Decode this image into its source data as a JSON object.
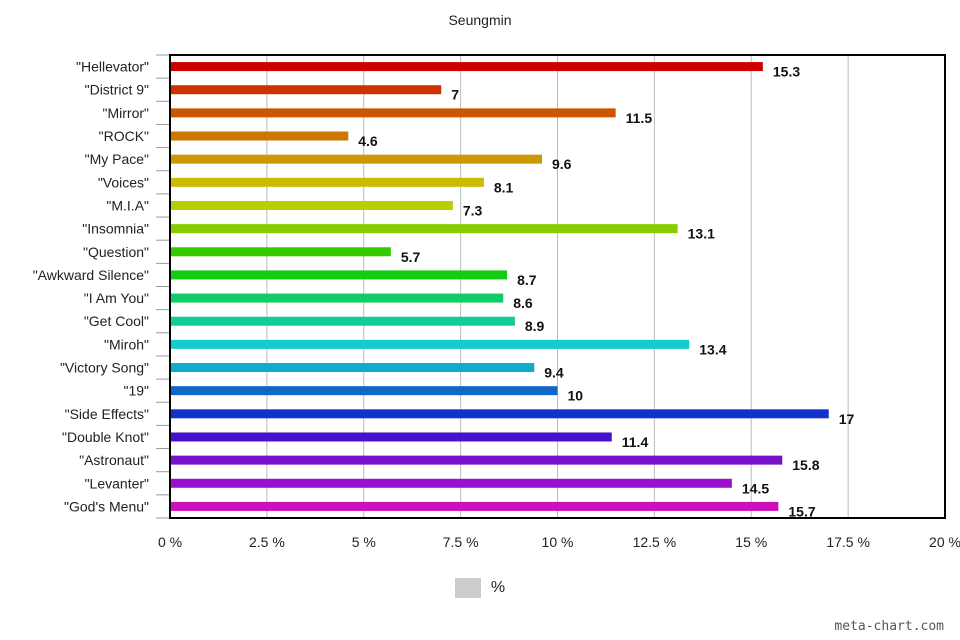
{
  "chart_data": {
    "type": "bar",
    "orientation": "horizontal",
    "title": "Seungmin",
    "categories": [
      "\"Hellevator\"",
      "\"District 9\"",
      "\"Mirror\"",
      "\"ROCK\"",
      "\"My Pace\"",
      "\"Voices\"",
      "\"M.I.A\"",
      "\"Insomnia\"",
      "\"Question\"",
      "\"Awkward Silence\"",
      "\"I Am You\"",
      "\"Get Cool\"",
      "\"Miroh\"",
      "\"Victory Song\"",
      "\"19\"",
      "\"Side Effects\"",
      "\"Double Knot\"",
      "\"Astronaut\"",
      "\"Levanter\"",
      "\"God's Menu\""
    ],
    "values": [
      15.3,
      7,
      11.5,
      4.6,
      9.6,
      8.1,
      7.3,
      13.1,
      5.7,
      8.7,
      8.6,
      8.9,
      13.4,
      9.4,
      10,
      17,
      11.4,
      15.8,
      14.5,
      15.7
    ],
    "value_labels": [
      "15.3",
      "7",
      "11.5",
      "4.6",
      "9.6",
      "8.1",
      "7.3",
      "13.1",
      "5.7",
      "8.7",
      "8.6",
      "8.9",
      "13.4",
      "9.4",
      "10",
      "17",
      "11.4",
      "15.8",
      "14.5",
      "15.7"
    ],
    "colors": [
      "#cc0000",
      "#cc3300",
      "#cc5500",
      "#cc7700",
      "#cc9900",
      "#ccbb00",
      "#bbcc00",
      "#88cc00",
      "#33cc00",
      "#11cc11",
      "#11cc66",
      "#11cc99",
      "#11cccc",
      "#11aacc",
      "#1166cc",
      "#1133cc",
      "#4411cc",
      "#7711cc",
      "#9911cc",
      "#cc11bb"
    ],
    "xlim": [
      0,
      20
    ],
    "x_ticks": [
      0,
      2.5,
      5,
      7.5,
      10,
      12.5,
      15,
      17.5,
      20
    ],
    "x_tick_labels": [
      "0 %",
      "2.5 %",
      "5 %",
      "7.5 %",
      "10 %",
      "12.5 %",
      "15 %",
      "17.5 %",
      "20 %"
    ],
    "grid": true,
    "legend": {
      "label": "%",
      "position": "bottom-center",
      "color": "#cccccc"
    }
  },
  "watermark": "meta-chart.com"
}
